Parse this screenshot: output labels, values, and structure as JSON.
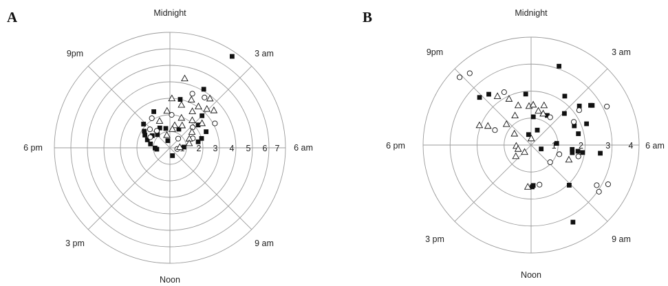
{
  "chart_data": [
    {
      "type": "scatter",
      "coordinate_system": "polar",
      "panel_label": "A",
      "radial_range": [
        0,
        7
      ],
      "radial_ticks": [
        "1",
        "2",
        "3",
        "4",
        "5",
        "6",
        "7"
      ],
      "angular_labels": [
        "Midnight",
        "3 am",
        "6 am",
        "9 am",
        "Noon",
        "3 pm",
        "6 pm",
        "9pm"
      ],
      "grid": true,
      "series": [
        {
          "marker": "filled-square",
          "points": [
            {
              "time_h": 2.28,
              "r": 6.7
            },
            {
              "time_h": 2.0,
              "r": 4.1
            },
            {
              "time_h": 22.4,
              "r": 2.4
            },
            {
              "time_h": 20.8,
              "r": 2.15
            },
            {
              "time_h": 20.2,
              "r": 1.85
            },
            {
              "time_h": 19.8,
              "r": 1.7
            },
            {
              "time_h": 19.3,
              "r": 1.45
            },
            {
              "time_h": 18.75,
              "r": 1.2
            },
            {
              "time_h": 21.1,
              "r": 1.1
            },
            {
              "time_h": 22.2,
              "r": 1.35
            },
            {
              "time_h": 23.2,
              "r": 1.2
            },
            {
              "time_h": 1.7,
              "r": 1.25
            },
            {
              "time_h": 3.4,
              "r": 2.2
            },
            {
              "time_h": 4.4,
              "r": 2.4
            },
            {
              "time_h": 4.9,
              "r": 2.0
            },
            {
              "time_h": 5.2,
              "r": 1.75
            },
            {
              "time_h": 5.8,
              "r": 0.85
            },
            {
              "time_h": 10.8,
              "r": 0.5
            },
            {
              "time_h": 17.95,
              "r": 0.9
            },
            {
              "time_h": 17.6,
              "r": 0.8
            },
            {
              "time_h": 20.3,
              "r": 1.3
            },
            {
              "time_h": 22.9,
              "r": 0.45
            },
            {
              "time_h": 3.0,
              "r": 2.75
            },
            {
              "time_h": 0.8,
              "r": 3.0
            }
          ]
        },
        {
          "marker": "open-circle",
          "points": [
            {
              "time_h": 1.5,
              "r": 3.55
            },
            {
              "time_h": 2.3,
              "r": 3.7
            },
            {
              "time_h": 0.2,
              "r": 2.0
            },
            {
              "time_h": 21.9,
              "r": 2.1
            },
            {
              "time_h": 20.85,
              "r": 1.65
            },
            {
              "time_h": 19.9,
              "r": 1.35
            },
            {
              "time_h": 3.2,
              "r": 1.85
            },
            {
              "time_h": 4.5,
              "r": 1.5
            },
            {
              "time_h": 6.6,
              "r": 0.45
            },
            {
              "time_h": 2.8,
              "r": 0.75
            },
            {
              "time_h": 21.5,
              "r": 1.3
            },
            {
              "time_h": 4.1,
              "r": 3.1
            }
          ]
        },
        {
          "marker": "open-triangle",
          "points": [
            {
              "time_h": 0.8,
              "r": 4.3
            },
            {
              "time_h": 1.6,
              "r": 3.2
            },
            {
              "time_h": 2.3,
              "r": 3.05
            },
            {
              "time_h": 2.6,
              "r": 3.85
            },
            {
              "time_h": 1.0,
              "r": 2.7
            },
            {
              "time_h": 0.15,
              "r": 3.0
            },
            {
              "time_h": 23.7,
              "r": 2.25
            },
            {
              "time_h": 2.1,
              "r": 2.6
            },
            {
              "time_h": 2.9,
              "r": 3.25
            },
            {
              "time_h": 3.5,
              "r": 2.45
            },
            {
              "time_h": 2.6,
              "r": 2.15
            },
            {
              "time_h": 1.4,
              "r": 1.95
            },
            {
              "time_h": 3.6,
              "r": 1.65
            },
            {
              "time_h": 4.3,
              "r": 1.3
            },
            {
              "time_h": 5.1,
              "r": 1.2
            },
            {
              "time_h": 0.8,
              "r": 1.4
            },
            {
              "time_h": 22.6,
              "r": 1.75
            },
            {
              "time_h": 1.9,
              "r": 1.55
            },
            {
              "time_h": 0.5,
              "r": 1.15
            },
            {
              "time_h": 5.7,
              "r": 0.6
            },
            {
              "time_h": 3.3,
              "r": 3.5
            },
            {
              "time_h": 23.1,
              "r": 0.8
            }
          ]
        }
      ]
    },
    {
      "type": "scatter",
      "coordinate_system": "polar",
      "panel_label": "B",
      "radial_range": [
        0,
        4
      ],
      "radial_ticks": [
        "1",
        "2",
        "3",
        "4"
      ],
      "angular_labels": [
        "Midnight",
        "3 am",
        "6 am",
        "9 am",
        "Noon",
        "3 pm",
        "6 pm",
        "9pm"
      ],
      "grid": true,
      "series": [
        {
          "marker": "filled-square",
          "points": [
            {
              "time_h": 1.3,
              "r": 3.1
            },
            {
              "time_h": 2.3,
              "r": 2.2
            },
            {
              "time_h": 3.1,
              "r": 1.7
            },
            {
              "time_h": 3.4,
              "r": 2.3
            },
            {
              "time_h": 3.75,
              "r": 2.65
            },
            {
              "time_h": 3.8,
              "r": 2.7
            },
            {
              "time_h": 4.4,
              "r": 1.75
            },
            {
              "time_h": 4.6,
              "r": 2.2
            },
            {
              "time_h": 5.1,
              "r": 1.8
            },
            {
              "time_h": 6.45,
              "r": 2.58
            },
            {
              "time_h": 6.55,
              "r": 1.93
            },
            {
              "time_h": 6.5,
              "r": 1.75
            },
            {
              "time_h": 6.4,
              "r": 1.53
            },
            {
              "time_h": 9.1,
              "r": 2.05
            },
            {
              "time_h": 10.1,
              "r": 3.25
            },
            {
              "time_h": 5.75,
              "r": 0.95
            },
            {
              "time_h": 7.4,
              "r": 0.4
            },
            {
              "time_h": 0.3,
              "r": 1.05
            },
            {
              "time_h": 1.9,
              "r": 1.25
            },
            {
              "time_h": 21.35,
              "r": 2.45
            },
            {
              "time_h": 20.85,
              "r": 2.6
            },
            {
              "time_h": 23.6,
              "r": 1.9
            },
            {
              "time_h": 6.7,
              "r": 1.55
            },
            {
              "time_h": 11.9,
              "r": 1.55
            },
            {
              "time_h": 11.8,
              "r": 1.5
            },
            {
              "time_h": 23.1,
              "r": 0.4
            },
            {
              "time_h": 1.5,
              "r": 0.6
            }
          ]
        },
        {
          "marker": "open-circle",
          "points": [
            {
              "time_h": 20.9,
              "r": 3.65
            },
            {
              "time_h": 21.3,
              "r": 3.5
            },
            {
              "time_h": 22.2,
              "r": 2.2
            },
            {
              "time_h": 3.6,
              "r": 2.2
            },
            {
              "time_h": 4.2,
              "r": 3.15
            },
            {
              "time_h": 8.1,
              "r": 2.85
            },
            {
              "time_h": 8.3,
              "r": 3.05
            },
            {
              "time_h": 7.8,
              "r": 3.2
            },
            {
              "time_h": 4.1,
              "r": 1.8
            },
            {
              "time_h": 6.9,
              "r": 1.8
            },
            {
              "time_h": 8.8,
              "r": 0.95
            },
            {
              "time_h": 11.2,
              "r": 1.5
            },
            {
              "time_h": 19.5,
              "r": 1.45
            },
            {
              "time_h": 2.3,
              "r": 1.25
            },
            {
              "time_h": 7.2,
              "r": 1.1
            }
          ]
        },
        {
          "marker": "open-triangle",
          "points": [
            {
              "time_h": 21.7,
              "r": 2.2
            },
            {
              "time_h": 22.3,
              "r": 1.9
            },
            {
              "time_h": 22.8,
              "r": 1.55
            },
            {
              "time_h": 23.8,
              "r": 1.45
            },
            {
              "time_h": 0.2,
              "r": 1.5
            },
            {
              "time_h": 0.8,
              "r": 1.3
            },
            {
              "time_h": 1.2,
              "r": 1.55
            },
            {
              "time_h": 1.4,
              "r": 1.25
            },
            {
              "time_h": 19.4,
              "r": 2.05
            },
            {
              "time_h": 19.6,
              "r": 1.75
            },
            {
              "time_h": 20.3,
              "r": 0.75
            },
            {
              "time_h": 15.6,
              "r": 0.7
            },
            {
              "time_h": 14.9,
              "r": 0.35
            },
            {
              "time_h": 12.3,
              "r": 1.55
            },
            {
              "time_h": 7.4,
              "r": 1.5
            },
            {
              "time_h": 20.7,
              "r": 1.2
            },
            {
              "time_h": 22.1,
              "r": 1.25
            },
            {
              "time_h": 0.1,
              "r": 0.25
            },
            {
              "time_h": 17.8,
              "r": 0.55
            },
            {
              "time_h": 16.9,
              "r": 0.5
            }
          ]
        }
      ]
    }
  ]
}
